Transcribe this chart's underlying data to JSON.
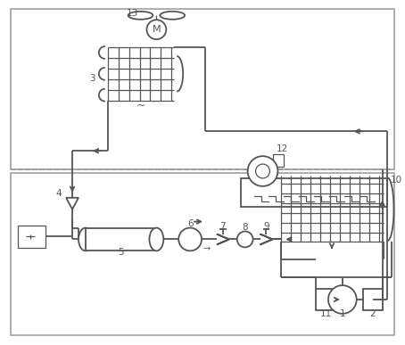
{
  "bg_color": "#ffffff",
  "line_color": "#555555",
  "dash_color": "#999999",
  "lw_main": 1.3,
  "lw_thin": 0.9
}
